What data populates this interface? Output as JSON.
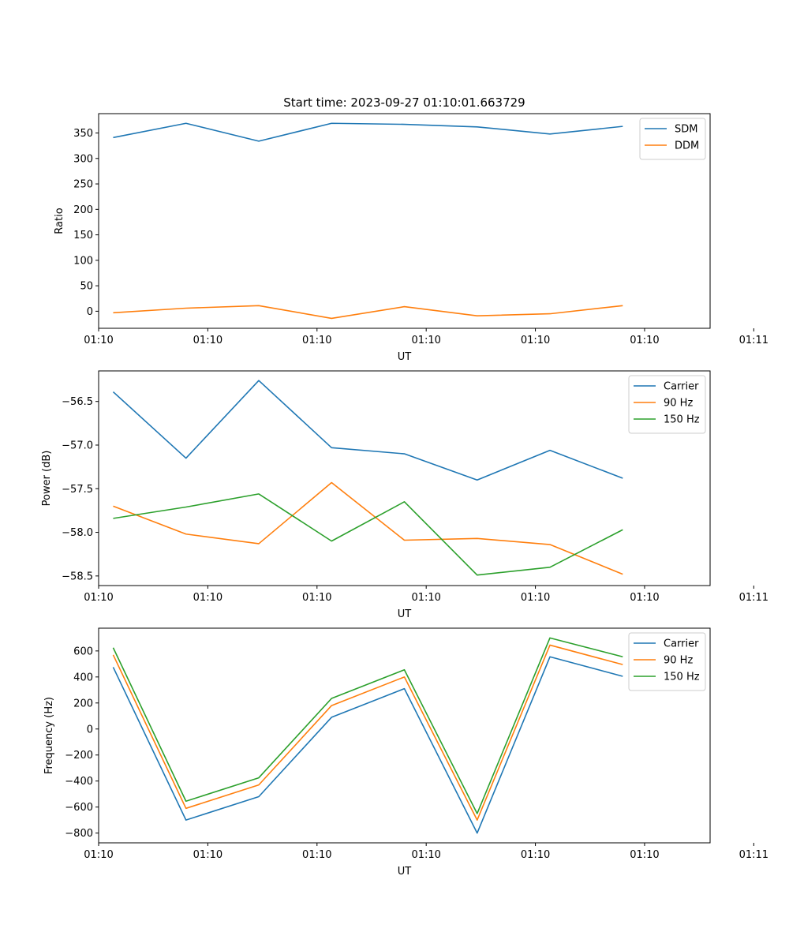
{
  "figure_title": "Start time: 2023-09-27 01:10:01.663729",
  "colors": {
    "c0": "#1f77b4",
    "c1": "#ff7f0e",
    "c2": "#2ca02c"
  },
  "chart_data": [
    {
      "type": "line",
      "title": "Start time: 2023-09-27 01:10:01.663729",
      "xlabel": "UT",
      "ylabel": "Ratio",
      "x": [
        1,
        2,
        3,
        4,
        5,
        6,
        7,
        8
      ],
      "xlim": [
        0.8,
        9.2
      ],
      "ylim": [
        -33.5,
        388
      ],
      "x_ticks": [
        {
          "value": 0.8,
          "label": "01:10"
        },
        {
          "value": 2.3,
          "label": "01:10"
        },
        {
          "value": 3.8,
          "label": "01:10"
        },
        {
          "value": 5.3,
          "label": "01:10"
        },
        {
          "value": 6.8,
          "label": "01:10"
        },
        {
          "value": 8.3,
          "label": "01:10"
        },
        {
          "value": 9.8,
          "label": "01:11"
        }
      ],
      "y_ticks": [
        {
          "value": 0,
          "label": "0"
        },
        {
          "value": 50,
          "label": "50"
        },
        {
          "value": 100,
          "label": "100"
        },
        {
          "value": 150,
          "label": "150"
        },
        {
          "value": 200,
          "label": "200"
        },
        {
          "value": 250,
          "label": "250"
        },
        {
          "value": 300,
          "label": "300"
        },
        {
          "value": 350,
          "label": "350"
        }
      ],
      "legend_position": "top-right",
      "series": [
        {
          "name": "SDM",
          "color": "#1f77b4",
          "values": [
            341,
            369,
            334,
            369,
            367,
            362,
            348,
            363
          ]
        },
        {
          "name": "DDM",
          "color": "#ff7f0e",
          "values": [
            -3,
            6,
            11,
            -14,
            9,
            -9,
            -5,
            11
          ]
        }
      ]
    },
    {
      "type": "line",
      "title": "",
      "xlabel": "UT",
      "ylabel": "Power (dB)",
      "x": [
        1,
        2,
        3,
        4,
        5,
        6,
        7,
        8
      ],
      "xlim": [
        0.8,
        9.2
      ],
      "ylim": [
        -58.61,
        -56.15
      ],
      "x_ticks": [
        {
          "value": 0.8,
          "label": "01:10"
        },
        {
          "value": 2.3,
          "label": "01:10"
        },
        {
          "value": 3.8,
          "label": "01:10"
        },
        {
          "value": 5.3,
          "label": "01:10"
        },
        {
          "value": 6.8,
          "label": "01:10"
        },
        {
          "value": 8.3,
          "label": "01:10"
        },
        {
          "value": 9.8,
          "label": "01:11"
        }
      ],
      "y_ticks": [
        {
          "value": -58.5,
          "label": "−58.5"
        },
        {
          "value": -58.0,
          "label": "−58.0"
        },
        {
          "value": -57.5,
          "label": "−57.5"
        },
        {
          "value": -57.0,
          "label": "−57.0"
        },
        {
          "value": -56.5,
          "label": "−56.5"
        }
      ],
      "legend_position": "top-right",
      "series": [
        {
          "name": "Carrier",
          "color": "#1f77b4",
          "values": [
            -56.39,
            -57.15,
            -56.26,
            -57.03,
            -57.1,
            -57.4,
            -57.06,
            -57.38
          ]
        },
        {
          "name": "90 Hz",
          "color": "#ff7f0e",
          "values": [
            -57.7,
            -58.02,
            -58.13,
            -57.43,
            -58.09,
            -58.07,
            -58.14,
            -58.48
          ]
        },
        {
          "name": "150 Hz",
          "color": "#2ca02c",
          "values": [
            -57.84,
            -57.71,
            -57.56,
            -58.1,
            -57.65,
            -58.49,
            -58.4,
            -57.97
          ]
        }
      ]
    },
    {
      "type": "line",
      "title": "",
      "xlabel": "UT",
      "ylabel": "Frequency (Hz)",
      "x": [
        1,
        2,
        3,
        4,
        5,
        6,
        7,
        8
      ],
      "xlim": [
        0.8,
        9.2
      ],
      "ylim": [
        -875,
        775
      ],
      "x_ticks": [
        {
          "value": 0.8,
          "label": "01:10"
        },
        {
          "value": 2.3,
          "label": "01:10"
        },
        {
          "value": 3.8,
          "label": "01:10"
        },
        {
          "value": 5.3,
          "label": "01:10"
        },
        {
          "value": 6.8,
          "label": "01:10"
        },
        {
          "value": 8.3,
          "label": "01:10"
        },
        {
          "value": 9.8,
          "label": "01:11"
        }
      ],
      "y_ticks": [
        {
          "value": -800,
          "label": "−800"
        },
        {
          "value": -600,
          "label": "−600"
        },
        {
          "value": -400,
          "label": "−400"
        },
        {
          "value": -200,
          "label": "−200"
        },
        {
          "value": 0,
          "label": "0"
        },
        {
          "value": 200,
          "label": "200"
        },
        {
          "value": 400,
          "label": "400"
        },
        {
          "value": 600,
          "label": "600"
        }
      ],
      "legend_position": "top-right",
      "series": [
        {
          "name": "Carrier",
          "color": "#1f77b4",
          "values": [
            475,
            -700,
            -520,
            90,
            310,
            -800,
            555,
            405
          ]
        },
        {
          "name": "90 Hz",
          "color": "#ff7f0e",
          "values": [
            570,
            -610,
            -430,
            180,
            400,
            -700,
            645,
            495
          ]
        },
        {
          "name": "150 Hz",
          "color": "#2ca02c",
          "values": [
            625,
            -555,
            -375,
            235,
            455,
            -650,
            700,
            555
          ]
        }
      ]
    }
  ]
}
